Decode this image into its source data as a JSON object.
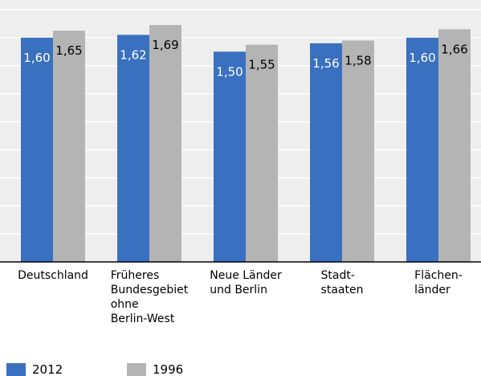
{
  "chart_data": {
    "type": "bar",
    "categories": [
      "Deutschland",
      "Früheres\nBundesgebiet\nohne\nBerlin-West",
      "Neue Länder\nund Berlin",
      "Stadt-\nstaaten",
      "Flächen-\nländer"
    ],
    "series": [
      {
        "name": "2012",
        "color": "#3a70c0",
        "values": [
          1.6,
          1.62,
          1.5,
          1.56,
          1.6
        ],
        "value_labels": [
          "1,60",
          "1,62",
          "1,50",
          "1,56",
          "1,60"
        ]
      },
      {
        "name": "1996",
        "color": "#b4b4b4",
        "values": [
          1.65,
          1.69,
          1.55,
          1.58,
          1.66
        ],
        "value_labels": [
          "1,65",
          "1,69",
          "1,55",
          "1,58",
          "1,66"
        ]
      }
    ],
    "ylim": [
      0,
      1.8
    ],
    "yticks": [
      0,
      0.2,
      0.4,
      0.6,
      0.8,
      1.0,
      1.2,
      1.4,
      1.6,
      1.8
    ],
    "grid": true
  }
}
